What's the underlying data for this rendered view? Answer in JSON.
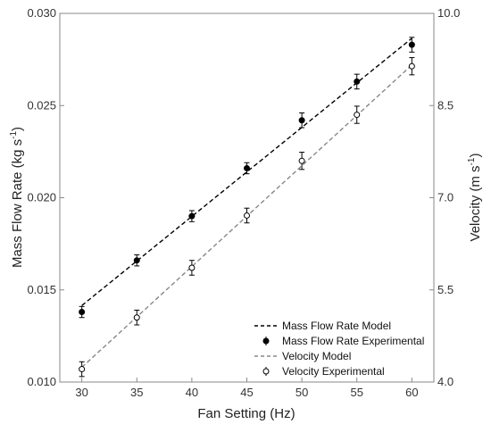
{
  "chart_data": {
    "type": "scatter",
    "x": [
      30,
      35,
      40,
      45,
      50,
      55,
      60
    ],
    "xlabel": "Fan Setting (Hz)",
    "ylabel_left": {
      "base": "Mass Flow Rate (kg s",
      "exp": "-1",
      "close": ")"
    },
    "ylabel_right": {
      "base": "Velocity (m s",
      "exp": "-1",
      "close": ")"
    },
    "xlim": [
      28,
      62
    ],
    "ylim_left": [
      0.01,
      0.03
    ],
    "ylim_right": [
      4.0,
      10.0
    ],
    "xticks": [
      "30",
      "35",
      "40",
      "45",
      "50",
      "55",
      "60"
    ],
    "yticks_left": [
      "0.010",
      "0.015",
      "0.020",
      "0.025",
      "0.030"
    ],
    "yticks_right": [
      "4.0",
      "5.5",
      "7.0",
      "8.5",
      "10.0"
    ],
    "series": [
      {
        "name": "Mass Flow Rate Model",
        "kind": "line",
        "axis": "left",
        "style": "dashed",
        "color": "#000000",
        "x": [
          30,
          60
        ],
        "values": [
          0.01415,
          0.02865
        ]
      },
      {
        "name": "Mass Flow Rate Experimental",
        "kind": "points",
        "axis": "left",
        "marker": "filled-circle",
        "color": "#000000",
        "values": [
          0.0138,
          0.0166,
          0.019,
          0.0216,
          0.0242,
          0.0263,
          0.0283
        ],
        "errors": [
          0.0003,
          0.0003,
          0.0003,
          0.0003,
          0.0004,
          0.0004,
          0.0004
        ]
      },
      {
        "name": "Velocity Model",
        "kind": "line",
        "axis": "right",
        "style": "dashed",
        "color": "#888888",
        "x": [
          30,
          60
        ],
        "values": [
          4.24,
          9.16
        ]
      },
      {
        "name": "Velocity Experimental",
        "kind": "points",
        "axis": "right",
        "marker": "open-circle",
        "color": "#000000",
        "values": [
          4.21,
          5.05,
          5.86,
          6.71,
          7.6,
          8.35,
          9.14
        ],
        "errors": [
          0.12,
          0.12,
          0.12,
          0.12,
          0.14,
          0.14,
          0.14
        ]
      }
    ],
    "legend": {
      "placement": "bottom-right"
    }
  }
}
